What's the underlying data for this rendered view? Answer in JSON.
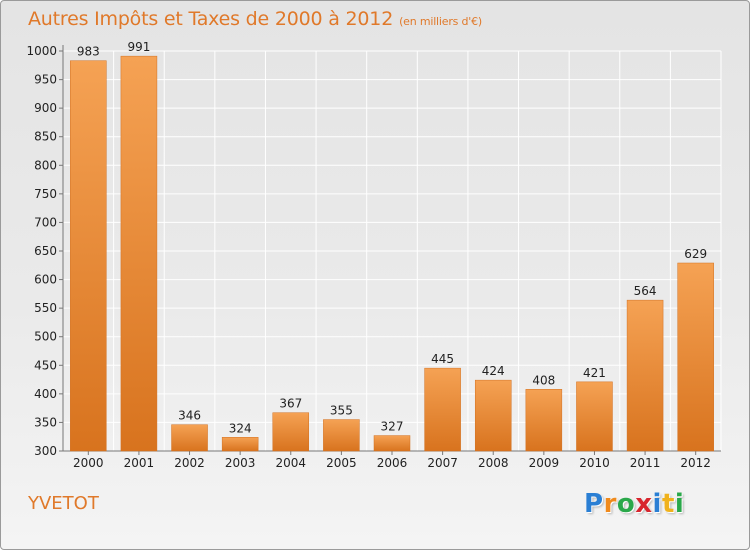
{
  "header": {
    "title": "Autres Impôts et Taxes de 2000 à 2012",
    "subtitle": "(en milliers d'€)"
  },
  "footer": {
    "city": "YVETOT",
    "logo_letters": [
      "P",
      "r",
      "o",
      "x",
      "i",
      "t",
      "i"
    ],
    "logo_colors": [
      "#2a7fd4",
      "#f08a1c",
      "#2aa84a",
      "#d8262e",
      "#2a7fd4",
      "#f0b21c",
      "#2aa84a"
    ]
  },
  "colors": {
    "accent": "#e0792a",
    "bar_top": "#f5a254",
    "bar_bottom": "#d8731e",
    "grid": "#ffffff"
  },
  "chart_data": {
    "type": "bar",
    "categories": [
      "2000",
      "2001",
      "2002",
      "2003",
      "2004",
      "2005",
      "2006",
      "2007",
      "2008",
      "2009",
      "2010",
      "2011",
      "2012"
    ],
    "values": [
      983,
      991,
      346,
      324,
      367,
      355,
      327,
      445,
      424,
      408,
      421,
      564,
      629
    ],
    "ylim": [
      300,
      1000
    ],
    "yticks": [
      300,
      350,
      400,
      450,
      500,
      550,
      600,
      650,
      700,
      750,
      800,
      850,
      900,
      950,
      1000
    ],
    "grid": true
  }
}
